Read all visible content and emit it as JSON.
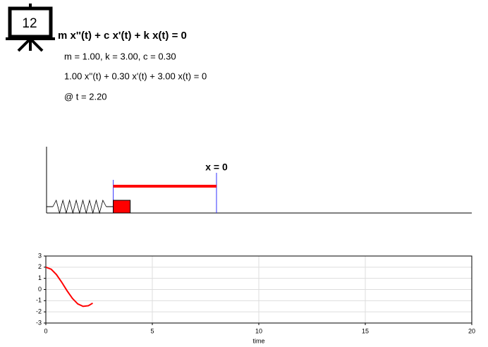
{
  "icon_label": "12",
  "equation": "m x''(t) + c x'(t) + k x(t) = 0",
  "parameters": "m = 1.00, k = 3.00, c = 0.30",
  "instantiated_equation": "1.00 x''(t) + 0.30 x'(t) + 3.00 x(t) = 0",
  "time_label": "@ t = 2.20",
  "origin_label": "x = 0",
  "chart_data": {
    "type": "line",
    "xlabel": "time",
    "x": [
      0,
      0.25,
      0.5,
      0.75,
      1,
      1.25,
      1.5,
      1.75,
      2,
      2.2
    ],
    "values": [
      2,
      1.82,
      1.33,
      0.64,
      -0.12,
      -0.8,
      -1.29,
      -1.51,
      -1.45,
      -1.22
    ],
    "color": "#ff0000",
    "xlim": [
      0,
      20
    ],
    "xticks": [
      0,
      5,
      10,
      15,
      20
    ],
    "ylim": [
      -3,
      3
    ],
    "yticks": [
      -3,
      -2,
      -1,
      0,
      1,
      2,
      3
    ],
    "grid": true
  }
}
